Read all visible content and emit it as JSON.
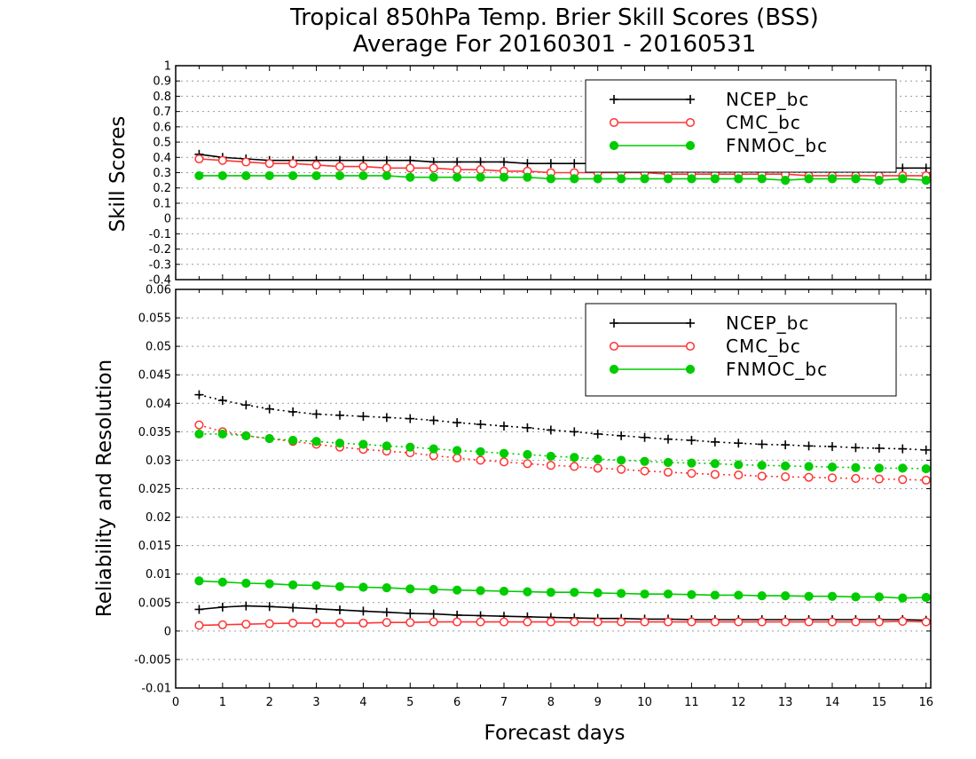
{
  "chart_data": [
    {
      "type": "line",
      "panel": "top",
      "title": "Tropical 850hPa Temp. Brier Skill Scores (BSS)",
      "subtitle": "Average For 20160301 - 20160531",
      "xlabel": "",
      "ylabel": "Skill Scores",
      "xlim": [
        0,
        16.1
      ],
      "ylim": [
        -0.4,
        1
      ],
      "yticks": [
        "1",
        "0.9",
        "0.8",
        "0.7",
        "0.6",
        "0.5",
        "0.4",
        "0.3",
        "0.2",
        "0.1",
        "0",
        "-0.1",
        "-0.2",
        "-0.3",
        "-0.4"
      ],
      "grid": true,
      "legend_position": "top-right",
      "x": [
        0.5,
        1,
        1.5,
        2,
        2.5,
        3,
        3.5,
        4,
        4.5,
        5,
        5.5,
        6,
        6.5,
        7,
        7.5,
        8,
        8.5,
        9,
        9.5,
        10,
        10.5,
        11,
        11.5,
        12,
        12.5,
        13,
        13.5,
        14,
        14.5,
        15,
        15.5,
        16
      ],
      "series": [
        {
          "name": "NCEP_bc",
          "color": "#000000",
          "marker": "plus",
          "line": "solid",
          "values": [
            0.42,
            0.4,
            0.39,
            0.38,
            0.38,
            0.38,
            0.38,
            0.38,
            0.38,
            0.38,
            0.37,
            0.37,
            0.37,
            0.37,
            0.36,
            0.36,
            0.36,
            0.36,
            0.35,
            0.35,
            0.35,
            0.35,
            0.35,
            0.35,
            0.34,
            0.34,
            0.34,
            0.34,
            0.34,
            0.33,
            0.33,
            0.33
          ]
        },
        {
          "name": "CMC_bc",
          "color": "#ff3333",
          "marker": "open-circle",
          "line": "solid",
          "values": [
            0.39,
            0.38,
            0.37,
            0.36,
            0.36,
            0.35,
            0.34,
            0.34,
            0.33,
            0.33,
            0.33,
            0.32,
            0.32,
            0.31,
            0.31,
            0.3,
            0.3,
            0.3,
            0.3,
            0.3,
            0.29,
            0.29,
            0.29,
            0.29,
            0.29,
            0.29,
            0.28,
            0.28,
            0.28,
            0.28,
            0.28,
            0.28
          ]
        },
        {
          "name": "FNMOC_bc",
          "color": "#00cc00",
          "marker": "filled-circle",
          "line": "solid",
          "values": [
            0.28,
            0.28,
            0.28,
            0.28,
            0.28,
            0.28,
            0.28,
            0.28,
            0.28,
            0.27,
            0.27,
            0.27,
            0.27,
            0.27,
            0.27,
            0.26,
            0.26,
            0.26,
            0.26,
            0.26,
            0.26,
            0.26,
            0.26,
            0.26,
            0.26,
            0.25,
            0.26,
            0.26,
            0.26,
            0.25,
            0.26,
            0.25
          ]
        }
      ]
    },
    {
      "type": "line",
      "panel": "bottom",
      "xlabel": "Forecast days",
      "ylabel": "Reliability and Resolution",
      "xlim": [
        0,
        16.1
      ],
      "ylim": [
        -0.01,
        0.06
      ],
      "xticks": [
        "0",
        "1",
        "2",
        "3",
        "4",
        "5",
        "6",
        "7",
        "8",
        "9",
        "10",
        "11",
        "12",
        "13",
        "14",
        "15",
        "16"
      ],
      "yticks": [
        "0.06",
        "0.055",
        "0.05",
        "0.045",
        "0.04",
        "0.035",
        "0.03",
        "0.025",
        "0.02",
        "0.015",
        "0.01",
        "0.005",
        "0",
        "-0.005",
        "-0.01"
      ],
      "grid": true,
      "legend_position": "top-right",
      "x": [
        0.5,
        1,
        1.5,
        2,
        2.5,
        3,
        3.5,
        4,
        4.5,
        5,
        5.5,
        6,
        6.5,
        7,
        7.5,
        8,
        8.5,
        9,
        9.5,
        10,
        10.5,
        11,
        11.5,
        12,
        12.5,
        13,
        13.5,
        14,
        14.5,
        15,
        15.5,
        16
      ],
      "legend": [
        {
          "name": "NCEP_bc",
          "color": "#000000",
          "marker": "plus"
        },
        {
          "name": "CMC_bc",
          "color": "#ff3333",
          "marker": "open-circle"
        },
        {
          "name": "FNMOC_bc",
          "color": "#00cc00",
          "marker": "filled-circle"
        }
      ],
      "series": [
        {
          "model": "NCEP_bc",
          "metric": "resolution",
          "color": "#000000",
          "marker": "plus",
          "line": "dotted",
          "values": [
            0.0415,
            0.0405,
            0.0397,
            0.039,
            0.0385,
            0.0381,
            0.0379,
            0.0377,
            0.0375,
            0.0373,
            0.037,
            0.0366,
            0.0363,
            0.036,
            0.0357,
            0.0353,
            0.035,
            0.0346,
            0.0343,
            0.034,
            0.0337,
            0.0335,
            0.0332,
            0.033,
            0.0328,
            0.0327,
            0.0325,
            0.0324,
            0.0322,
            0.0321,
            0.032,
            0.0318
          ]
        },
        {
          "model": "CMC_bc",
          "metric": "resolution",
          "color": "#ff3333",
          "marker": "open-circle",
          "line": "dotted",
          "values": [
            0.0362,
            0.035,
            0.0343,
            0.0338,
            0.0333,
            0.0328,
            0.0323,
            0.0319,
            0.0316,
            0.0313,
            0.0308,
            0.0304,
            0.03,
            0.0297,
            0.0294,
            0.0291,
            0.0289,
            0.0286,
            0.0284,
            0.0281,
            0.0279,
            0.0277,
            0.0275,
            0.0274,
            0.0272,
            0.0271,
            0.027,
            0.0269,
            0.0268,
            0.0267,
            0.0266,
            0.0265
          ]
        },
        {
          "model": "FNMOC_bc",
          "metric": "resolution",
          "color": "#00cc00",
          "marker": "filled-circle",
          "line": "dotted",
          "values": [
            0.0346,
            0.0346,
            0.0343,
            0.0338,
            0.0335,
            0.0333,
            0.033,
            0.0328,
            0.0325,
            0.0323,
            0.032,
            0.0317,
            0.0315,
            0.0312,
            0.031,
            0.0307,
            0.0305,
            0.0302,
            0.03,
            0.0298,
            0.0296,
            0.0295,
            0.0294,
            0.0292,
            0.0291,
            0.029,
            0.0289,
            0.0288,
            0.0287,
            0.0286,
            0.0286,
            0.0285
          ]
        },
        {
          "model": "FNMOC_bc",
          "metric": "reliability",
          "color": "#00cc00",
          "marker": "filled-circle",
          "line": "solid",
          "values": [
            0.0088,
            0.0086,
            0.0084,
            0.0083,
            0.0081,
            0.008,
            0.0078,
            0.0077,
            0.0076,
            0.0074,
            0.0073,
            0.0072,
            0.0071,
            0.007,
            0.0069,
            0.0068,
            0.0068,
            0.0067,
            0.0066,
            0.0065,
            0.0065,
            0.0064,
            0.0063,
            0.0063,
            0.0062,
            0.0062,
            0.0061,
            0.0061,
            0.006,
            0.006,
            0.0058,
            0.0059
          ]
        },
        {
          "model": "NCEP_bc",
          "metric": "reliability",
          "color": "#000000",
          "marker": "plus",
          "line": "solid",
          "values": [
            0.0038,
            0.0042,
            0.0044,
            0.0043,
            0.0041,
            0.0039,
            0.0037,
            0.0035,
            0.0033,
            0.0031,
            0.003,
            0.0028,
            0.0027,
            0.0026,
            0.0025,
            0.0024,
            0.0023,
            0.0022,
            0.0022,
            0.0021,
            0.0021,
            0.002,
            0.002,
            0.002,
            0.002,
            0.002,
            0.002,
            0.002,
            0.002,
            0.002,
            0.002,
            0.0019
          ]
        },
        {
          "model": "CMC_bc",
          "metric": "reliability",
          "color": "#ff3333",
          "marker": "open-circle",
          "line": "solid",
          "values": [
            0.001,
            0.0011,
            0.0012,
            0.0013,
            0.0014,
            0.0014,
            0.0014,
            0.0014,
            0.0015,
            0.0015,
            0.0016,
            0.0016,
            0.0016,
            0.0016,
            0.0016,
            0.0016,
            0.0016,
            0.0016,
            0.0016,
            0.0016,
            0.0016,
            0.0016,
            0.0016,
            0.0016,
            0.0016,
            0.0016,
            0.0016,
            0.0016,
            0.0016,
            0.0016,
            0.0017,
            0.0016
          ]
        }
      ]
    }
  ]
}
